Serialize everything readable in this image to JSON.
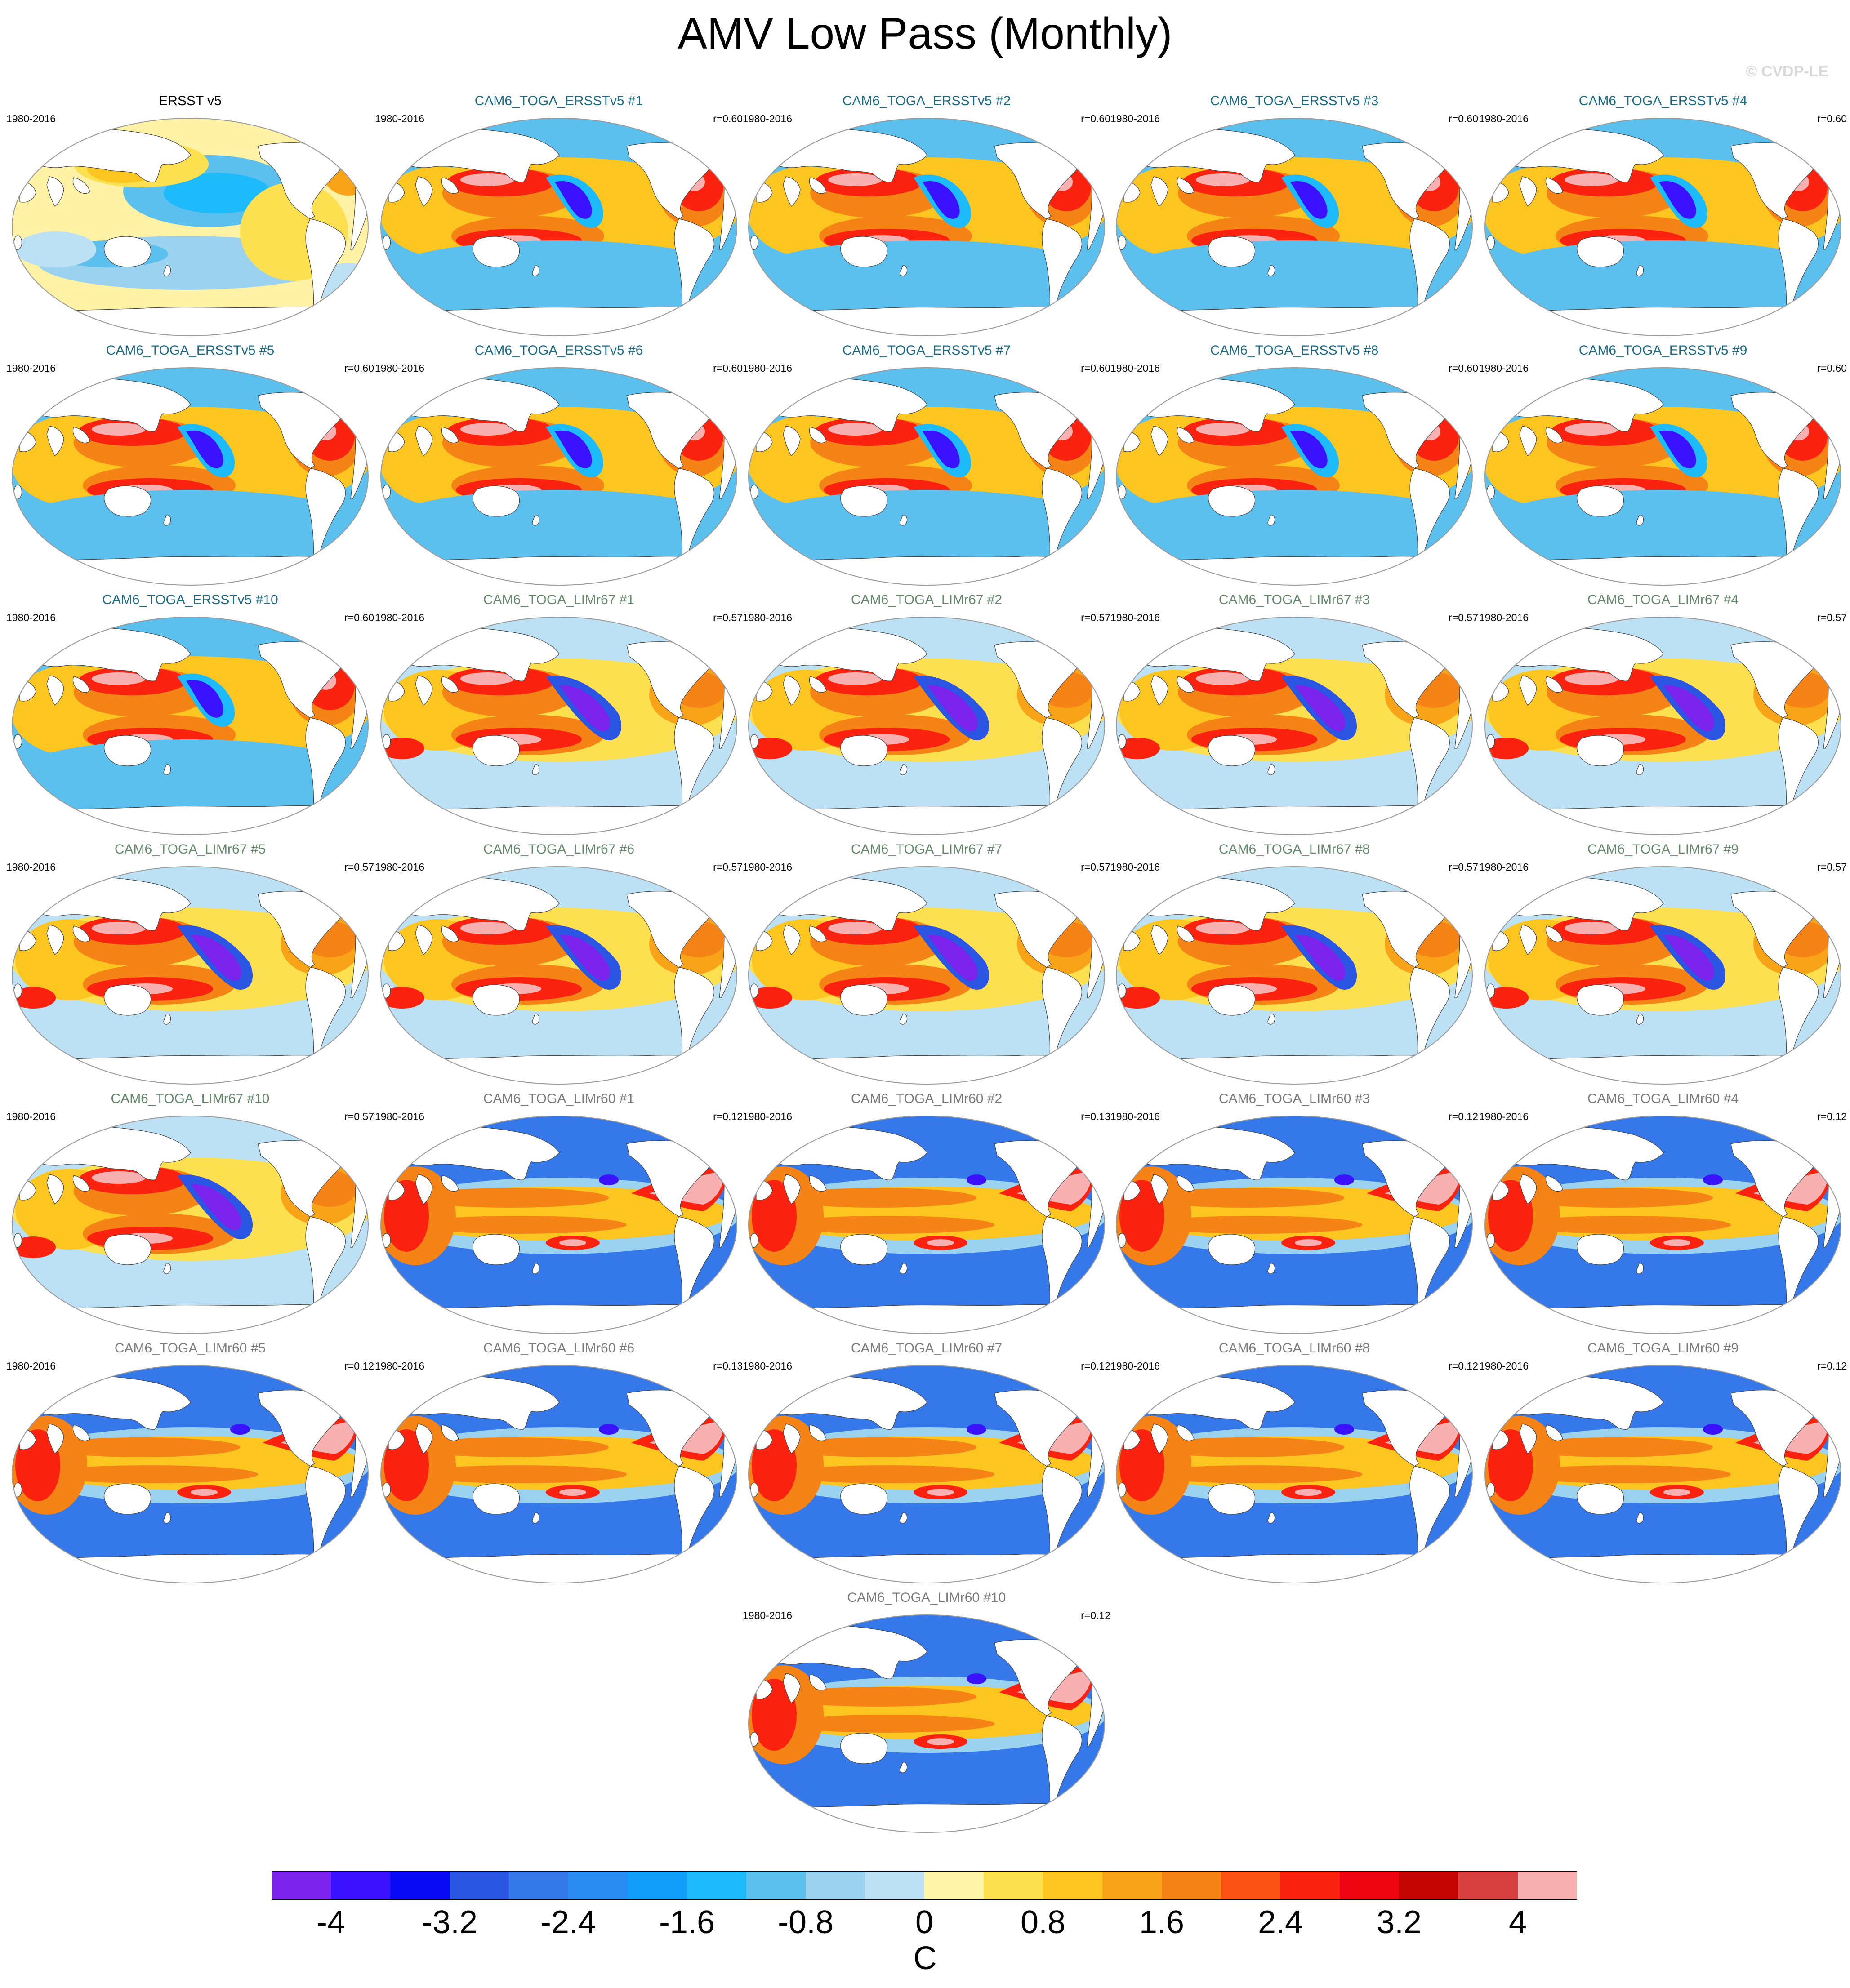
{
  "title": "AMV Low Pass (Monthly)",
  "watermark": "© CVDP-LE",
  "colors": {
    "ersst_title": "#000000",
    "ersstv5_title": "#1a6a86",
    "limr67_title": "#62876a",
    "limr60_title": "#7a7a7a",
    "land": "#ffffff",
    "coast": "#444444",
    "map_border": "#9a9a9a"
  },
  "panels": [
    {
      "title": "ERSST v5",
      "period": "1980-2016",
      "r": "",
      "group": "ersst"
    },
    {
      "title": "CAM6_TOGA_ERSSTv5 #1",
      "period": "1980-2016",
      "r": "r=0.60",
      "group": "ersstv5"
    },
    {
      "title": "CAM6_TOGA_ERSSTv5 #2",
      "period": "1980-2016",
      "r": "r=0.60",
      "group": "ersstv5"
    },
    {
      "title": "CAM6_TOGA_ERSSTv5 #3",
      "period": "1980-2016",
      "r": "r=0.60",
      "group": "ersstv5"
    },
    {
      "title": "CAM6_TOGA_ERSSTv5 #4",
      "period": "1980-2016",
      "r": "r=0.60",
      "group": "ersstv5"
    },
    {
      "title": "CAM6_TOGA_ERSSTv5 #5",
      "period": "1980-2016",
      "r": "r=0.60",
      "group": "ersstv5"
    },
    {
      "title": "CAM6_TOGA_ERSSTv5 #6",
      "period": "1980-2016",
      "r": "r=0.60",
      "group": "ersstv5"
    },
    {
      "title": "CAM6_TOGA_ERSSTv5 #7",
      "period": "1980-2016",
      "r": "r=0.60",
      "group": "ersstv5"
    },
    {
      "title": "CAM6_TOGA_ERSSTv5 #8",
      "period": "1980-2016",
      "r": "r=0.60",
      "group": "ersstv5"
    },
    {
      "title": "CAM6_TOGA_ERSSTv5 #9",
      "period": "1980-2016",
      "r": "r=0.60",
      "group": "ersstv5"
    },
    {
      "title": "CAM6_TOGA_ERSSTv5 #10",
      "period": "1980-2016",
      "r": "r=0.60",
      "group": "ersstv5"
    },
    {
      "title": "CAM6_TOGA_LIMr67 #1",
      "period": "1980-2016",
      "r": "r=0.57",
      "group": "limr67"
    },
    {
      "title": "CAM6_TOGA_LIMr67 #2",
      "period": "1980-2016",
      "r": "r=0.57",
      "group": "limr67"
    },
    {
      "title": "CAM6_TOGA_LIMr67 #3",
      "period": "1980-2016",
      "r": "r=0.57",
      "group": "limr67"
    },
    {
      "title": "CAM6_TOGA_LIMr67 #4",
      "period": "1980-2016",
      "r": "r=0.57",
      "group": "limr67"
    },
    {
      "title": "CAM6_TOGA_LIMr67 #5",
      "period": "1980-2016",
      "r": "r=0.57",
      "group": "limr67"
    },
    {
      "title": "CAM6_TOGA_LIMr67 #6",
      "period": "1980-2016",
      "r": "r=0.57",
      "group": "limr67"
    },
    {
      "title": "CAM6_TOGA_LIMr67 #7",
      "period": "1980-2016",
      "r": "r=0.57",
      "group": "limr67"
    },
    {
      "title": "CAM6_TOGA_LIMr67 #8",
      "period": "1980-2016",
      "r": "r=0.57",
      "group": "limr67"
    },
    {
      "title": "CAM6_TOGA_LIMr67 #9",
      "period": "1980-2016",
      "r": "r=0.57",
      "group": "limr67"
    },
    {
      "title": "CAM6_TOGA_LIMr67 #10",
      "period": "1980-2016",
      "r": "r=0.57",
      "group": "limr67"
    },
    {
      "title": "CAM6_TOGA_LIMr60 #1",
      "period": "1980-2016",
      "r": "r=0.12",
      "group": "limr60"
    },
    {
      "title": "CAM6_TOGA_LIMr60 #2",
      "period": "1980-2016",
      "r": "r=0.13",
      "group": "limr60"
    },
    {
      "title": "CAM6_TOGA_LIMr60 #3",
      "period": "1980-2016",
      "r": "r=0.12",
      "group": "limr60"
    },
    {
      "title": "CAM6_TOGA_LIMr60 #4",
      "period": "1980-2016",
      "r": "r=0.12",
      "group": "limr60"
    },
    {
      "title": "CAM6_TOGA_LIMr60 #5",
      "period": "1980-2016",
      "r": "r=0.12",
      "group": "limr60"
    },
    {
      "title": "CAM6_TOGA_LIMr60 #6",
      "period": "1980-2016",
      "r": "r=0.13",
      "group": "limr60"
    },
    {
      "title": "CAM6_TOGA_LIMr60 #7",
      "period": "1980-2016",
      "r": "r=0.12",
      "group": "limr60"
    },
    {
      "title": "CAM6_TOGA_LIMr60 #8",
      "period": "1980-2016",
      "r": "r=0.12",
      "group": "limr60"
    },
    {
      "title": "CAM6_TOGA_LIMr60 #9",
      "period": "1980-2016",
      "r": "r=0.12",
      "group": "limr60"
    },
    {
      "title": "CAM6_TOGA_LIMr60 #10",
      "period": "1980-2016",
      "r": "r=0.12",
      "group": "limr60"
    }
  ],
  "chart_data": {
    "type": "heatmap",
    "title": "AMV Low Pass (Monthly)",
    "projection": "Robinson, Pacific-centred",
    "variable": "sea surface temperature regression",
    "units": "C",
    "colorbar": {
      "levels": [
        -4.4,
        -4,
        -3.6,
        -3.2,
        -2.8,
        -2.4,
        -2,
        -1.6,
        -1.2,
        -0.8,
        -0.4,
        0,
        0.4,
        0.8,
        1.2,
        1.6,
        2,
        2.4,
        2.8,
        3.2,
        3.6,
        4,
        4.4
      ],
      "colors": [
        "#7b22ec",
        "#3a12ff",
        "#0a0af5",
        "#2b55e3",
        "#3478ea",
        "#2a8cf2",
        "#139efa",
        "#1dbbfb",
        "#5bc0ee",
        "#9ad2f0",
        "#bce0f4",
        "#fff5a8",
        "#fde050",
        "#fcc520",
        "#f9a418",
        "#f68316",
        "#fd5314",
        "#fb2310",
        "#ee0410",
        "#c50404",
        "#d84040",
        "#f8b0b0"
      ],
      "tick_labels": [
        "-4",
        "-3.2",
        "-2.4",
        "-1.6",
        "-0.8",
        "0",
        "0.8",
        "1.6",
        "2.4",
        "3.2",
        "4"
      ],
      "tick_values": [
        -4,
        -3.2,
        -2.4,
        -1.6,
        -0.8,
        0,
        0.8,
        1.6,
        2.4,
        3.2,
        4
      ]
    },
    "panels": [
      {
        "name": "ERSST v5",
        "period": "1980-2016",
        "r": null
      },
      {
        "name": "CAM6_TOGA_ERSSTv5 #1-#10",
        "period": "1980-2016",
        "r": 0.6
      },
      {
        "name": "CAM6_TOGA_LIMr67 #1-#10",
        "period": "1980-2016",
        "r": 0.57
      },
      {
        "name": "CAM6_TOGA_LIMr60 #1",
        "period": "1980-2016",
        "r": 0.12
      },
      {
        "name": "CAM6_TOGA_LIMr60 #2",
        "period": "1980-2016",
        "r": 0.13
      },
      {
        "name": "CAM6_TOGA_LIMr60 #3-#5",
        "period": "1980-2016",
        "r": 0.12
      },
      {
        "name": "CAM6_TOGA_LIMr60 #6",
        "period": "1980-2016",
        "r": 0.13
      },
      {
        "name": "CAM6_TOGA_LIMr60 #7-#10",
        "period": "1980-2016",
        "r": 0.12
      }
    ]
  }
}
